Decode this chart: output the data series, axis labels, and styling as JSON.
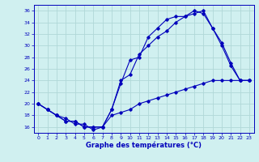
{
  "title": "",
  "xlabel": "Graphe des températures (°C)",
  "background_color": "#d0f0f0",
  "grid_color": "#b0d8d8",
  "line_color": "#0000bb",
  "xlim": [
    -0.5,
    23.5
  ],
  "ylim": [
    15,
    37
  ],
  "yticks": [
    16,
    18,
    20,
    22,
    24,
    26,
    28,
    30,
    32,
    34,
    36
  ],
  "xticks": [
    0,
    1,
    2,
    3,
    4,
    5,
    6,
    7,
    8,
    9,
    10,
    11,
    12,
    13,
    14,
    15,
    16,
    17,
    18,
    19,
    20,
    21,
    22,
    23
  ],
  "curve1_x": [
    0,
    1,
    2,
    3,
    4,
    5,
    6,
    7,
    8,
    9,
    10,
    11,
    12,
    13,
    14,
    15,
    16,
    17,
    18,
    19,
    20,
    21,
    22,
    23
  ],
  "curve1_y": [
    20,
    19,
    18,
    17,
    17,
    16,
    16,
    16,
    19,
    23.5,
    27.5,
    28,
    31.5,
    33,
    34.5,
    35,
    35,
    36,
    35.5,
    33,
    30.5,
    27,
    24,
    24
  ],
  "curve2_x": [
    0,
    1,
    2,
    3,
    4,
    5,
    6,
    7,
    8,
    9,
    10,
    11,
    12,
    13,
    14,
    15,
    16,
    17,
    18,
    19,
    20,
    21,
    22,
    23
  ],
  "curve2_y": [
    20,
    19,
    18,
    17,
    17,
    16,
    16,
    16,
    19,
    24,
    25,
    28.5,
    30,
    31.5,
    32.5,
    34,
    35,
    35.5,
    36,
    33,
    30,
    26.5,
    24,
    24
  ],
  "curve3_x": [
    0,
    1,
    2,
    3,
    4,
    5,
    6,
    7,
    8,
    9,
    10,
    11,
    12,
    13,
    14,
    15,
    16,
    17,
    18,
    19,
    20,
    21,
    22,
    23
  ],
  "curve3_y": [
    20,
    19,
    18,
    17.5,
    16.5,
    16.5,
    15.5,
    16,
    18,
    18.5,
    19,
    20,
    20.5,
    21,
    21.5,
    22,
    22.5,
    23,
    23.5,
    24,
    24,
    24,
    24,
    24
  ]
}
